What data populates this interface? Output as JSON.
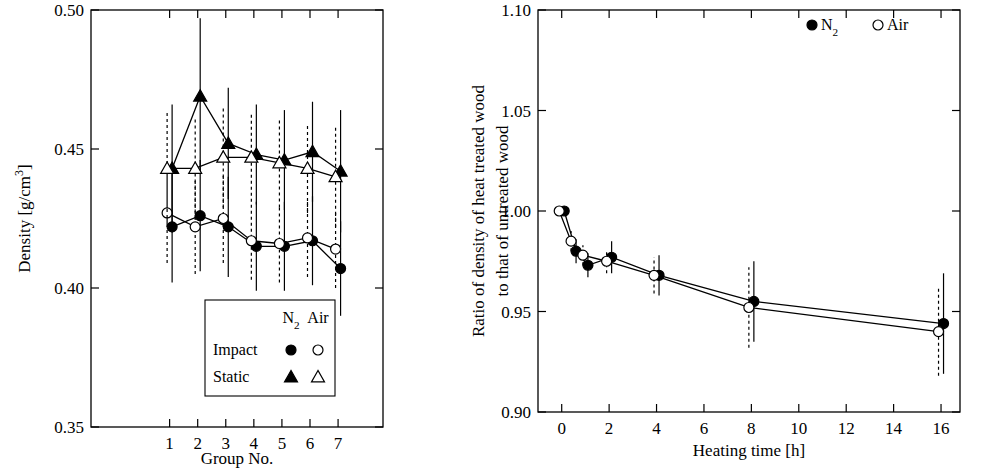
{
  "chart_data": [
    {
      "type": "line",
      "xlabel": "Group No.",
      "ylabel": "Density [g/cm3]",
      "x": [
        1,
        2,
        3,
        4,
        5,
        6,
        7
      ],
      "xlim": [
        -1.8,
        8.6
      ],
      "xticks": [
        1,
        2,
        3,
        4,
        5,
        6,
        7
      ],
      "ylim": [
        0.35,
        0.5
      ],
      "yticks": [
        0.35,
        {
          "value": 0.4,
          "label": "0.40"
        },
        0.45,
        {
          "value": 0.5,
          "label": "0.50"
        }
      ],
      "legend": "bottom",
      "series": [
        {
          "name": "Impact",
          "atmosphere": "N2",
          "color": "#000000",
          "marker": "filled-circle",
          "values": [
            0.422,
            0.426,
            0.422,
            0.415,
            0.415,
            0.417,
            0.407
          ],
          "errors": [
            0.02,
            0.02,
            0.018,
            0.016,
            0.016,
            0.016,
            0.017
          ]
        },
        {
          "name": "Impact",
          "atmosphere": "Air",
          "color": "#000000",
          "marker": "open-circle",
          "values": [
            0.427,
            0.422,
            0.425,
            0.417,
            0.416,
            0.418,
            0.414
          ],
          "errors": [
            0.018,
            0.017,
            0.016,
            0.014,
            0.014,
            0.014,
            0.014
          ]
        },
        {
          "name": "Static",
          "atmosphere": "N2",
          "color": "#000000",
          "marker": "filled-triangle",
          "values": [
            0.443,
            0.469,
            0.452,
            0.448,
            0.446,
            0.449,
            0.442
          ],
          "errors": [
            0.023,
            0.028,
            0.02,
            0.018,
            0.018,
            0.018,
            0.022
          ]
        },
        {
          "name": "Static",
          "atmosphere": "Air",
          "color": "#000000",
          "marker": "open-triangle",
          "values": [
            0.443,
            0.443,
            0.447,
            0.447,
            0.445,
            0.443,
            0.44
          ],
          "errors": [
            0.02,
            0.018,
            0.018,
            0.016,
            0.016,
            0.016,
            0.018
          ]
        }
      ]
    },
    {
      "type": "line",
      "xlabel": "Heating time [h]",
      "ylabel": [
        "Ratio of density of heat treated wood",
        "to that of untreated wood"
      ],
      "x": [
        0,
        0.5,
        1,
        2,
        4,
        8,
        16
      ],
      "xlim": [
        -1,
        16.8
      ],
      "xticks": [
        0,
        2,
        4,
        6,
        8,
        10,
        12,
        14,
        16
      ],
      "ylim": [
        0.9,
        1.1
      ],
      "yticks": [
        {
          "value": 0.9,
          "label": "0.90"
        },
        0.95,
        {
          "value": 1,
          "label": "1.00"
        },
        1.05,
        {
          "value": 1.1,
          "label": "1.10"
        }
      ],
      "legend": "upper right",
      "series": [
        {
          "name": "N2",
          "color": "#000000",
          "marker": "filled-circle",
          "values": [
            1.0,
            0.98,
            0.973,
            0.977,
            0.968,
            0.955,
            0.944
          ],
          "errors": [
            0,
            0.006,
            0.006,
            0.008,
            0.01,
            0.02,
            0.025
          ]
        },
        {
          "name": "Air",
          "color": "#000000",
          "marker": "open-circle",
          "values": [
            1.0,
            0.985,
            0.978,
            0.975,
            0.968,
            0.952,
            0.94
          ],
          "errors": [
            0,
            0.005,
            0.005,
            0.006,
            0.009,
            0.02,
            0.022
          ]
        }
      ]
    }
  ]
}
